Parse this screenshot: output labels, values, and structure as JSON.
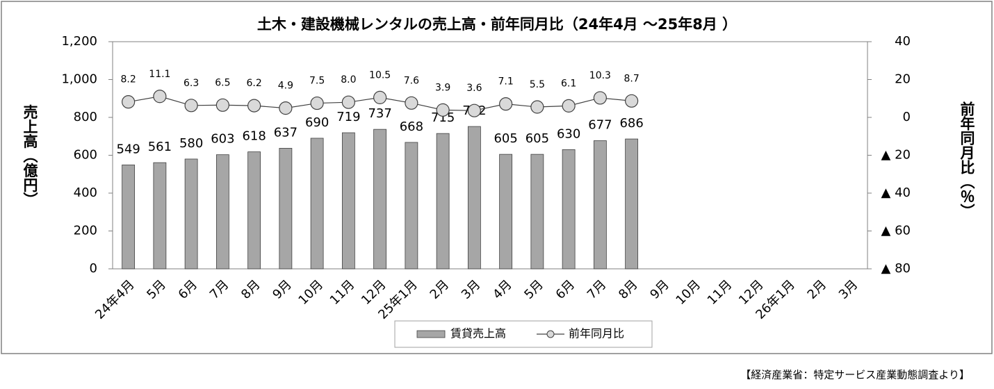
{
  "chart_data": {
    "type": "bar_line",
    "title": "土木・建設機械レンタルの売上高・前年同月比（24年4月 ～25年8月 ）",
    "ylabel": "売上高（億円）",
    "y2label": "前年同月比（％）",
    "source": "【経済産業省：特定サービス産業動態調査より】",
    "categories": [
      "24年4月",
      "5月",
      "6月",
      "7月",
      "8月",
      "9月",
      "10月",
      "11月",
      "12月",
      "25年1月",
      "2月",
      "3月",
      "4月",
      "5月",
      "6月",
      "7月",
      "8月",
      "9月",
      "10月",
      "11月",
      "12月",
      "26年1月",
      "2月",
      "3月"
    ],
    "series": [
      {
        "name": "賃貸売上高",
        "type": "bar",
        "color": "#a6a6a6",
        "values": [
          549,
          561,
          580,
          603,
          618,
          637,
          690,
          719,
          737,
          668,
          715,
          752,
          605,
          605,
          630,
          677,
          686,
          null,
          null,
          null,
          null,
          null,
          null,
          null
        ]
      },
      {
        "name": "前年同月比",
        "type": "line",
        "axis": "y2",
        "color": "#d9d9d9",
        "values": [
          8.2,
          11.1,
          6.3,
          6.5,
          6.2,
          4.9,
          7.5,
          8.0,
          10.5,
          7.6,
          3.9,
          3.6,
          7.1,
          5.5,
          6.1,
          10.3,
          8.7,
          null,
          null,
          null,
          null,
          null,
          null,
          null
        ],
        "value_labels": [
          "8.2",
          "11.1",
          "6.3",
          "6.5",
          "6.2",
          "4.9",
          "7.5",
          "8.0",
          "10.5",
          "7.6",
          "3.9",
          "3.6",
          "7.1",
          "5.5",
          "6.1",
          "10.3",
          "8.7",
          null,
          null,
          null,
          null,
          null,
          null,
          null
        ]
      }
    ],
    "ylim": [
      0,
      1200
    ],
    "yticks": [
      0,
      200,
      400,
      600,
      800,
      {
        "value": 1000,
        "label": "1,000"
      },
      {
        "value": 1200,
        "label": "1,200"
      }
    ],
    "y2lim": [
      -80,
      40
    ],
    "y2ticks": [
      {
        "value": -80,
        "label": "▲ 80"
      },
      {
        "value": -60,
        "label": "▲ 60"
      },
      {
        "value": -40,
        "label": "▲ 40"
      },
      {
        "value": -20,
        "label": "▲ 20"
      },
      0,
      20,
      40
    ],
    "legend": "bottom"
  }
}
